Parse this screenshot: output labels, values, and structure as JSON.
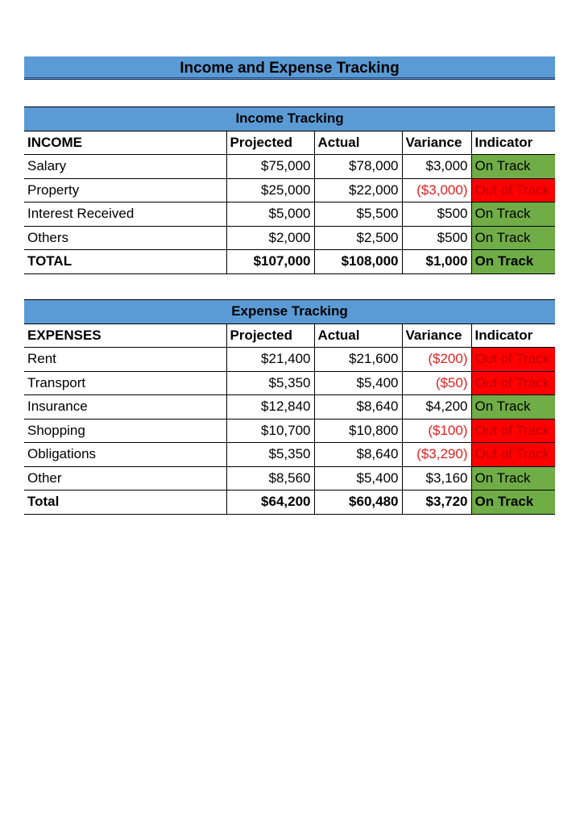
{
  "page_title": "Income and Expense Tracking",
  "income": {
    "title": "Income Tracking",
    "headers": [
      "INCOME",
      "Projected",
      "Actual",
      "Variance",
      "Indicator"
    ],
    "rows": [
      {
        "label": "Salary",
        "projected": "$75,000",
        "actual": "$78,000",
        "variance": "$3,000",
        "variance_negative": false,
        "indicator": "On Track",
        "status": "on"
      },
      {
        "label": "Property",
        "projected": "$25,000",
        "actual": "$22,000",
        "variance": "($3,000)",
        "variance_negative": true,
        "indicator": "Out of Track",
        "status": "off"
      },
      {
        "label": "Interest Received",
        "projected": "$5,000",
        "actual": "$5,500",
        "variance": "$500",
        "variance_negative": false,
        "indicator": "On Track",
        "status": "on"
      },
      {
        "label": "Others",
        "projected": "$2,000",
        "actual": "$2,500",
        "variance": "$500",
        "variance_negative": false,
        "indicator": "On Track",
        "status": "on"
      }
    ],
    "total": {
      "label": "TOTAL",
      "projected": "$107,000",
      "actual": "$108,000",
      "variance": "$1,000",
      "indicator": "On Track",
      "status": "on"
    }
  },
  "expense": {
    "title": "Expense Tracking",
    "headers": [
      "EXPENSES",
      "Projected",
      "Actual",
      "Variance",
      "Indicator"
    ],
    "rows": [
      {
        "label": "Rent",
        "projected": "$21,400",
        "actual": "$21,600",
        "variance": "($200)",
        "variance_negative": true,
        "indicator": "Out of Track",
        "status": "off"
      },
      {
        "label": "Transport",
        "projected": "$5,350",
        "actual": "$5,400",
        "variance": "($50)",
        "variance_negative": true,
        "indicator": "Out of Track",
        "status": "off"
      },
      {
        "label": "Insurance",
        "projected": "$12,840",
        "actual": "$8,640",
        "variance": "$4,200",
        "variance_negative": false,
        "indicator": "On Track",
        "status": "on"
      },
      {
        "label": "Shopping",
        "projected": "$10,700",
        "actual": "$10,800",
        "variance": "($100)",
        "variance_negative": true,
        "indicator": "Out of Track",
        "status": "off"
      },
      {
        "label": "Obligations",
        "projected": "$5,350",
        "actual": "$8,640",
        "variance": "($3,290)",
        "variance_negative": true,
        "indicator": "Out of Track",
        "status": "off"
      },
      {
        "label": "Other",
        "projected": "$8,560",
        "actual": "$5,400",
        "variance": "$3,160",
        "variance_negative": false,
        "indicator": "On Track",
        "status": "on"
      }
    ],
    "total": {
      "label": "Total",
      "projected": "$64,200",
      "actual": "$60,480",
      "variance": "$3,720",
      "indicator": "On Track",
      "status": "on"
    }
  },
  "colors": {
    "header_blue": "#5b9bd5",
    "on_track_green": "#70ad47",
    "out_of_track_red": "#ff0000",
    "negative_text": "#e02020"
  }
}
